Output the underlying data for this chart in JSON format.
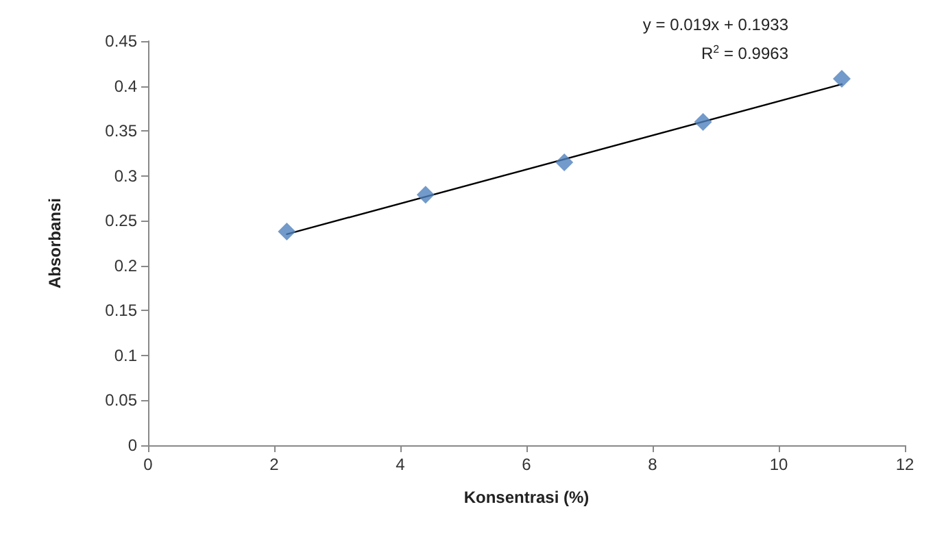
{
  "chart_data": {
    "type": "scatter",
    "xlabel": "Konsentrasi (%)",
    "ylabel": "Absorbansi",
    "xlim": [
      0,
      12
    ],
    "xticks": [
      0,
      2,
      4,
      6,
      8,
      10,
      12
    ],
    "ylim": [
      0,
      0.45
    ],
    "yticks": [
      0,
      0.05,
      0.1,
      0.15,
      0.2,
      0.25,
      0.3,
      0.35,
      0.4,
      0.45
    ],
    "grid": false,
    "marker": "diamond",
    "series": [
      {
        "type": "scatter",
        "color": "#4f81bd",
        "x": [
          2.2,
          4.4,
          6.6,
          8.8,
          11
        ],
        "values": [
          0.238,
          0.279,
          0.315,
          0.36,
          0.408
        ]
      },
      {
        "type": "line",
        "color": "#000000",
        "line_style": "solid",
        "marker": "none",
        "x": [
          2.2,
          11
        ],
        "values": [
          0.235,
          0.402
        ]
      }
    ],
    "annotations": [
      "y = 0.019x + 0.1933",
      "R$^{2}$ = 0.9963"
    ]
  }
}
